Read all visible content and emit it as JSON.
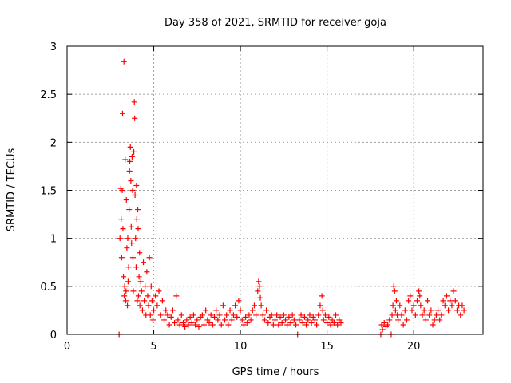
{
  "chart_data": {
    "type": "scatter",
    "title": "Day 358 of 2021, SRMTID for receiver goja",
    "xlabel": "GPS time / hours",
    "ylabel": "SRMTID / TECUs",
    "xlim": [
      0,
      24
    ],
    "ylim": [
      0,
      3
    ],
    "xticks": [
      0,
      5,
      10,
      15,
      20
    ],
    "yticks": [
      0,
      0.5,
      1,
      1.5,
      2,
      2.5,
      3
    ],
    "xtick_labels": [
      "0",
      "5",
      "10",
      "15",
      "20"
    ],
    "ytick_labels": [
      "0",
      "0.5",
      "1",
      "1.5",
      "2",
      "2.5",
      "3"
    ],
    "grid": true,
    "marker": "+",
    "series": [
      {
        "name": "SRMTID",
        "color": "#ff0000",
        "points": [
          [
            3.0,
            0.0
          ],
          [
            3.05,
            1.0
          ],
          [
            3.1,
            1.52
          ],
          [
            3.12,
            1.2
          ],
          [
            3.15,
            0.8
          ],
          [
            3.18,
            1.5
          ],
          [
            3.2,
            2.3
          ],
          [
            3.22,
            1.1
          ],
          [
            3.25,
            0.6
          ],
          [
            3.28,
            2.84
          ],
          [
            3.3,
            0.4
          ],
          [
            3.32,
            0.5
          ],
          [
            3.35,
            1.82
          ],
          [
            3.38,
            0.35
          ],
          [
            3.4,
            0.45
          ],
          [
            3.42,
            1.4
          ],
          [
            3.45,
            0.9
          ],
          [
            3.48,
            0.3
          ],
          [
            3.5,
            1.0
          ],
          [
            3.52,
            0.55
          ],
          [
            3.55,
            0.7
          ],
          [
            3.58,
            1.3
          ],
          [
            3.6,
            1.7
          ],
          [
            3.62,
            1.8
          ],
          [
            3.65,
            1.95
          ],
          [
            3.68,
            1.6
          ],
          [
            3.7,
            1.12
          ],
          [
            3.72,
            0.95
          ],
          [
            3.75,
            1.85
          ],
          [
            3.78,
            1.5
          ],
          [
            3.8,
            0.8
          ],
          [
            3.82,
            0.45
          ],
          [
            3.85,
            1.9
          ],
          [
            3.88,
            2.42
          ],
          [
            3.9,
            2.25
          ],
          [
            3.92,
            1.45
          ],
          [
            3.95,
            1.0
          ],
          [
            3.98,
            0.7
          ],
          [
            4.0,
            1.55
          ],
          [
            4.02,
            1.2
          ],
          [
            4.05,
            0.35
          ],
          [
            4.08,
            1.3
          ],
          [
            4.1,
            1.1
          ],
          [
            4.12,
            0.4
          ],
          [
            4.15,
            0.6
          ],
          [
            4.18,
            0.85
          ],
          [
            4.2,
            0.3
          ],
          [
            4.25,
            0.55
          ],
          [
            4.3,
            0.45
          ],
          [
            4.35,
            0.25
          ],
          [
            4.4,
            0.75
          ],
          [
            4.45,
            0.35
          ],
          [
            4.5,
            0.5
          ],
          [
            4.55,
            0.2
          ],
          [
            4.6,
            0.65
          ],
          [
            4.65,
            0.4
          ],
          [
            4.7,
            0.3
          ],
          [
            4.75,
            0.8
          ],
          [
            4.8,
            0.2
          ],
          [
            4.85,
            0.5
          ],
          [
            4.9,
            0.35
          ],
          [
            4.95,
            0.15
          ],
          [
            5.0,
            0.25
          ],
          [
            5.1,
            0.4
          ],
          [
            5.2,
            0.3
          ],
          [
            5.3,
            0.45
          ],
          [
            5.4,
            0.2
          ],
          [
            5.5,
            0.35
          ],
          [
            5.6,
            0.15
          ],
          [
            5.7,
            0.25
          ],
          [
            5.8,
            0.2
          ],
          [
            5.9,
            0.1
          ],
          [
            6.0,
            0.18
          ],
          [
            6.1,
            0.25
          ],
          [
            6.2,
            0.12
          ],
          [
            6.3,
            0.4
          ],
          [
            6.4,
            0.15
          ],
          [
            6.5,
            0.1
          ],
          [
            6.6,
            0.2
          ],
          [
            6.7,
            0.12
          ],
          [
            6.8,
            0.08
          ],
          [
            6.9,
            0.15
          ],
          [
            7.0,
            0.1
          ],
          [
            7.1,
            0.18
          ],
          [
            7.2,
            0.12
          ],
          [
            7.3,
            0.2
          ],
          [
            7.4,
            0.1
          ],
          [
            7.5,
            0.15
          ],
          [
            7.6,
            0.08
          ],
          [
            7.7,
            0.18
          ],
          [
            7.8,
            0.2
          ],
          [
            7.9,
            0.1
          ],
          [
            8.0,
            0.25
          ],
          [
            8.1,
            0.15
          ],
          [
            8.2,
            0.12
          ],
          [
            8.3,
            0.2
          ],
          [
            8.4,
            0.1
          ],
          [
            8.5,
            0.18
          ],
          [
            8.6,
            0.25
          ],
          [
            8.7,
            0.15
          ],
          [
            8.8,
            0.2
          ],
          [
            8.9,
            0.1
          ],
          [
            9.0,
            0.3
          ],
          [
            9.1,
            0.15
          ],
          [
            9.2,
            0.2
          ],
          [
            9.3,
            0.1
          ],
          [
            9.4,
            0.25
          ],
          [
            9.5,
            0.15
          ],
          [
            9.6,
            0.2
          ],
          [
            9.7,
            0.3
          ],
          [
            9.8,
            0.18
          ],
          [
            9.9,
            0.35
          ],
          [
            10.0,
            0.25
          ],
          [
            10.1,
            0.15
          ],
          [
            10.2,
            0.1
          ],
          [
            10.3,
            0.18
          ],
          [
            10.4,
            0.12
          ],
          [
            10.5,
            0.2
          ],
          [
            10.6,
            0.15
          ],
          [
            10.7,
            0.25
          ],
          [
            10.8,
            0.3
          ],
          [
            10.9,
            0.2
          ],
          [
            11.0,
            0.45
          ],
          [
            11.05,
            0.55
          ],
          [
            11.1,
            0.5
          ],
          [
            11.15,
            0.38
          ],
          [
            11.2,
            0.3
          ],
          [
            11.3,
            0.2
          ],
          [
            11.4,
            0.15
          ],
          [
            11.5,
            0.25
          ],
          [
            11.6,
            0.12
          ],
          [
            11.7,
            0.18
          ],
          [
            11.8,
            0.2
          ],
          [
            11.9,
            0.1
          ],
          [
            12.0,
            0.15
          ],
          [
            12.1,
            0.2
          ],
          [
            12.2,
            0.1
          ],
          [
            12.3,
            0.18
          ],
          [
            12.4,
            0.12
          ],
          [
            12.5,
            0.2
          ],
          [
            12.6,
            0.15
          ],
          [
            12.7,
            0.1
          ],
          [
            12.8,
            0.18
          ],
          [
            12.9,
            0.12
          ],
          [
            13.0,
            0.2
          ],
          [
            13.1,
            0.15
          ],
          [
            13.2,
            0.1
          ],
          [
            13.3,
            0.0
          ],
          [
            13.4,
            0.15
          ],
          [
            13.5,
            0.2
          ],
          [
            13.6,
            0.12
          ],
          [
            13.7,
            0.18
          ],
          [
            13.8,
            0.1
          ],
          [
            13.9,
            0.15
          ],
          [
            14.0,
            0.2
          ],
          [
            14.1,
            0.12
          ],
          [
            14.2,
            0.18
          ],
          [
            14.3,
            0.15
          ],
          [
            14.4,
            0.1
          ],
          [
            14.5,
            0.2
          ],
          [
            14.6,
            0.3
          ],
          [
            14.7,
            0.4
          ],
          [
            14.75,
            0.25
          ],
          [
            14.8,
            0.15
          ],
          [
            14.9,
            0.2
          ],
          [
            15.0,
            0.12
          ],
          [
            15.1,
            0.18
          ],
          [
            15.2,
            0.1
          ],
          [
            15.3,
            0.15
          ],
          [
            15.4,
            0.12
          ],
          [
            15.5,
            0.2
          ],
          [
            15.6,
            0.1
          ],
          [
            15.7,
            0.15
          ],
          [
            15.8,
            0.12
          ],
          [
            18.1,
            0.0
          ],
          [
            18.15,
            0.1
          ],
          [
            18.2,
            0.05
          ],
          [
            18.3,
            0.12
          ],
          [
            18.4,
            0.08
          ],
          [
            18.5,
            0.1
          ],
          [
            18.6,
            0.15
          ],
          [
            18.7,
            0.0
          ],
          [
            18.75,
            0.2
          ],
          [
            18.8,
            0.3
          ],
          [
            18.85,
            0.5
          ],
          [
            18.9,
            0.45
          ],
          [
            18.95,
            0.25
          ],
          [
            19.0,
            0.35
          ],
          [
            19.05,
            0.2
          ],
          [
            19.1,
            0.15
          ],
          [
            19.2,
            0.3
          ],
          [
            19.3,
            0.2
          ],
          [
            19.4,
            0.1
          ],
          [
            19.5,
            0.25
          ],
          [
            19.6,
            0.15
          ],
          [
            19.7,
            0.35
          ],
          [
            19.8,
            0.4
          ],
          [
            19.9,
            0.25
          ],
          [
            20.0,
            0.3
          ],
          [
            20.1,
            0.2
          ],
          [
            20.2,
            0.35
          ],
          [
            20.3,
            0.45
          ],
          [
            20.35,
            0.4
          ],
          [
            20.4,
            0.3
          ],
          [
            20.5,
            0.2
          ],
          [
            20.6,
            0.25
          ],
          [
            20.7,
            0.15
          ],
          [
            20.8,
            0.35
          ],
          [
            20.9,
            0.2
          ],
          [
            21.0,
            0.25
          ],
          [
            21.1,
            0.1
          ],
          [
            21.2,
            0.15
          ],
          [
            21.3,
            0.2
          ],
          [
            21.4,
            0.25
          ],
          [
            21.5,
            0.15
          ],
          [
            21.6,
            0.2
          ],
          [
            21.7,
            0.35
          ],
          [
            21.8,
            0.3
          ],
          [
            21.9,
            0.4
          ],
          [
            22.0,
            0.25
          ],
          [
            22.1,
            0.35
          ],
          [
            22.2,
            0.3
          ],
          [
            22.3,
            0.45
          ],
          [
            22.4,
            0.35
          ],
          [
            22.5,
            0.25
          ],
          [
            22.6,
            0.3
          ],
          [
            22.7,
            0.2
          ],
          [
            22.8,
            0.3
          ],
          [
            22.9,
            0.25
          ]
        ]
      }
    ]
  }
}
